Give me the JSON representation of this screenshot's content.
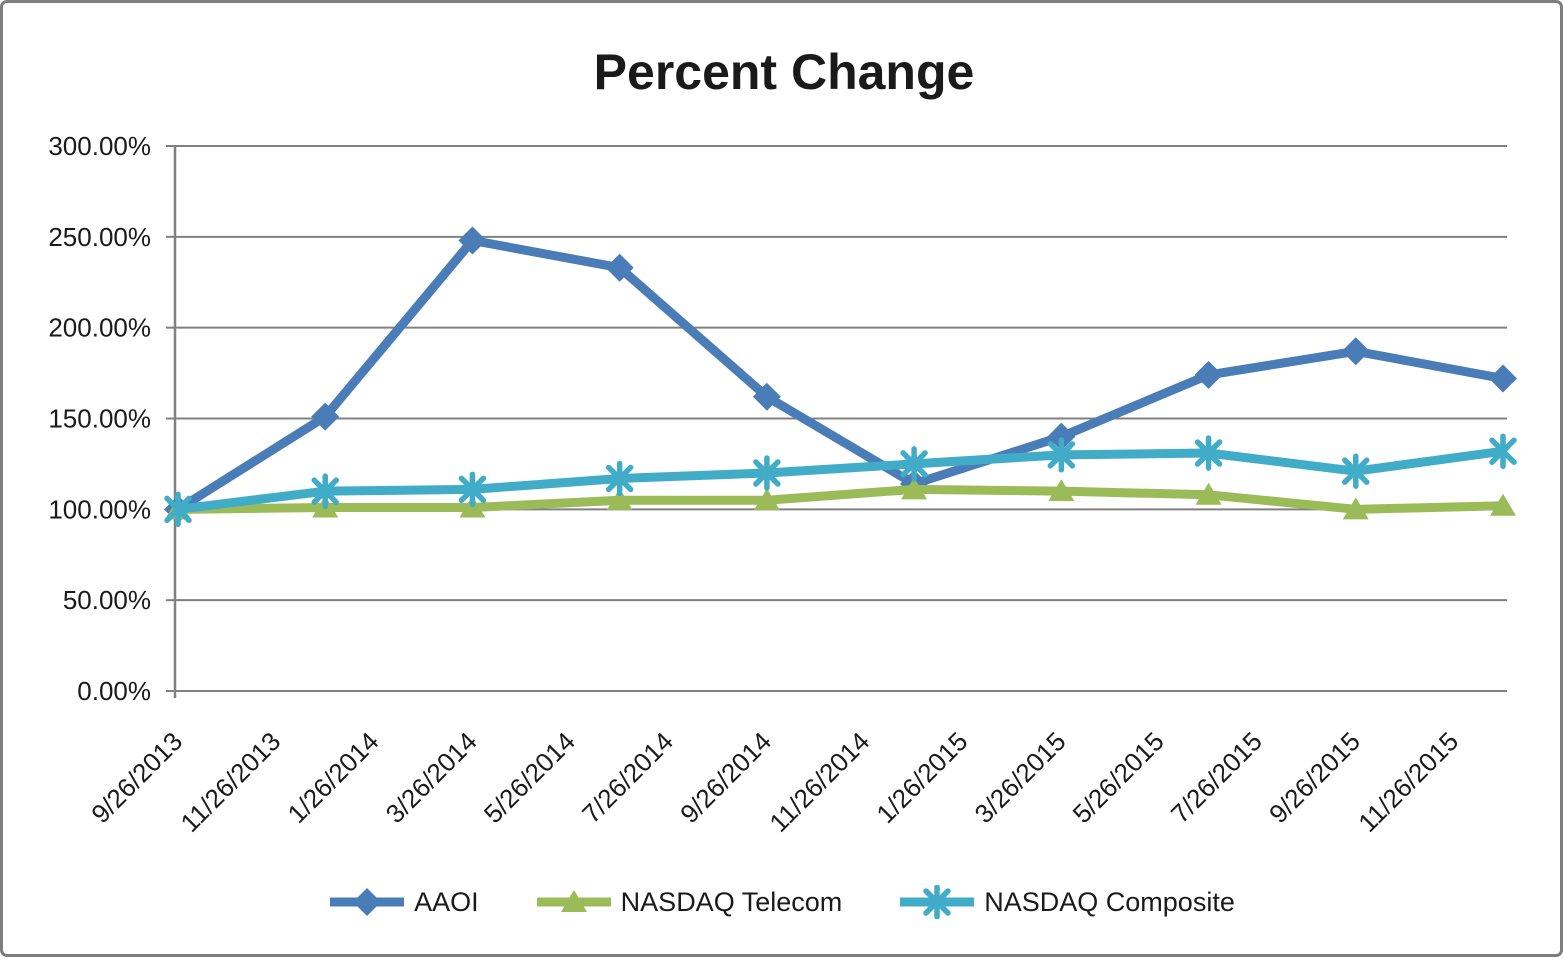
{
  "window": {
    "background": "#ffffff",
    "border_color": "#7e7e7e"
  },
  "chart_data": {
    "type": "line",
    "title": "Percent Change",
    "grid": true,
    "gridline_color": "#808080",
    "axis_color": "#808080",
    "text_color": "#1a1a1a",
    "y_axis": {
      "min": 0,
      "max": 300,
      "step": 50,
      "unit": "%",
      "tick_labels": [
        "0.00%",
        "50.00%",
        "100.00%",
        "150.00%",
        "200.00%",
        "250.00%",
        "300.00%"
      ]
    },
    "x_axis": {
      "type": "date",
      "label_rotation_deg": -45,
      "tick_labels": [
        "9/26/2013",
        "11/26/2013",
        "1/26/2014",
        "3/26/2014",
        "5/26/2014",
        "7/26/2014",
        "9/26/2014",
        "11/26/2014",
        "1/26/2015",
        "3/26/2015",
        "5/26/2015",
        "7/26/2015",
        "9/26/2015",
        "11/26/2015"
      ],
      "tick_month_offsets": [
        0,
        2,
        4,
        6,
        8,
        10,
        12,
        14,
        16,
        18,
        20,
        22,
        24,
        26
      ]
    },
    "x": [
      "9/26/2013",
      "12/26/2013",
      "3/26/2014",
      "6/26/2014",
      "9/26/2014",
      "12/26/2014",
      "3/26/2015",
      "6/26/2015",
      "9/26/2015",
      "12/26/2015"
    ],
    "x_month_offsets": [
      0,
      3,
      6,
      9,
      12,
      15,
      18,
      21,
      24,
      27
    ],
    "series": [
      {
        "name": "AAOI",
        "color": "#4a7cb8",
        "marker": "diamond",
        "values": [
          100,
          151,
          248,
          233,
          162,
          114,
          140,
          174,
          187,
          172
        ]
      },
      {
        "name": "NASDAQ Telecom",
        "color": "#9bbb59",
        "marker": "triangle",
        "values": [
          100,
          101,
          101,
          105,
          105,
          111,
          110,
          108,
          100,
          102
        ]
      },
      {
        "name": "NASDAQ Composite",
        "color": "#41acc8",
        "marker": "asterisk",
        "values": [
          100,
          110,
          111,
          117,
          120,
          125,
          130,
          131,
          121,
          132
        ]
      }
    ],
    "legend": {
      "position": "bottom",
      "entries": [
        "AAOI",
        "NASDAQ Telecom",
        "NASDAQ Composite"
      ]
    }
  }
}
